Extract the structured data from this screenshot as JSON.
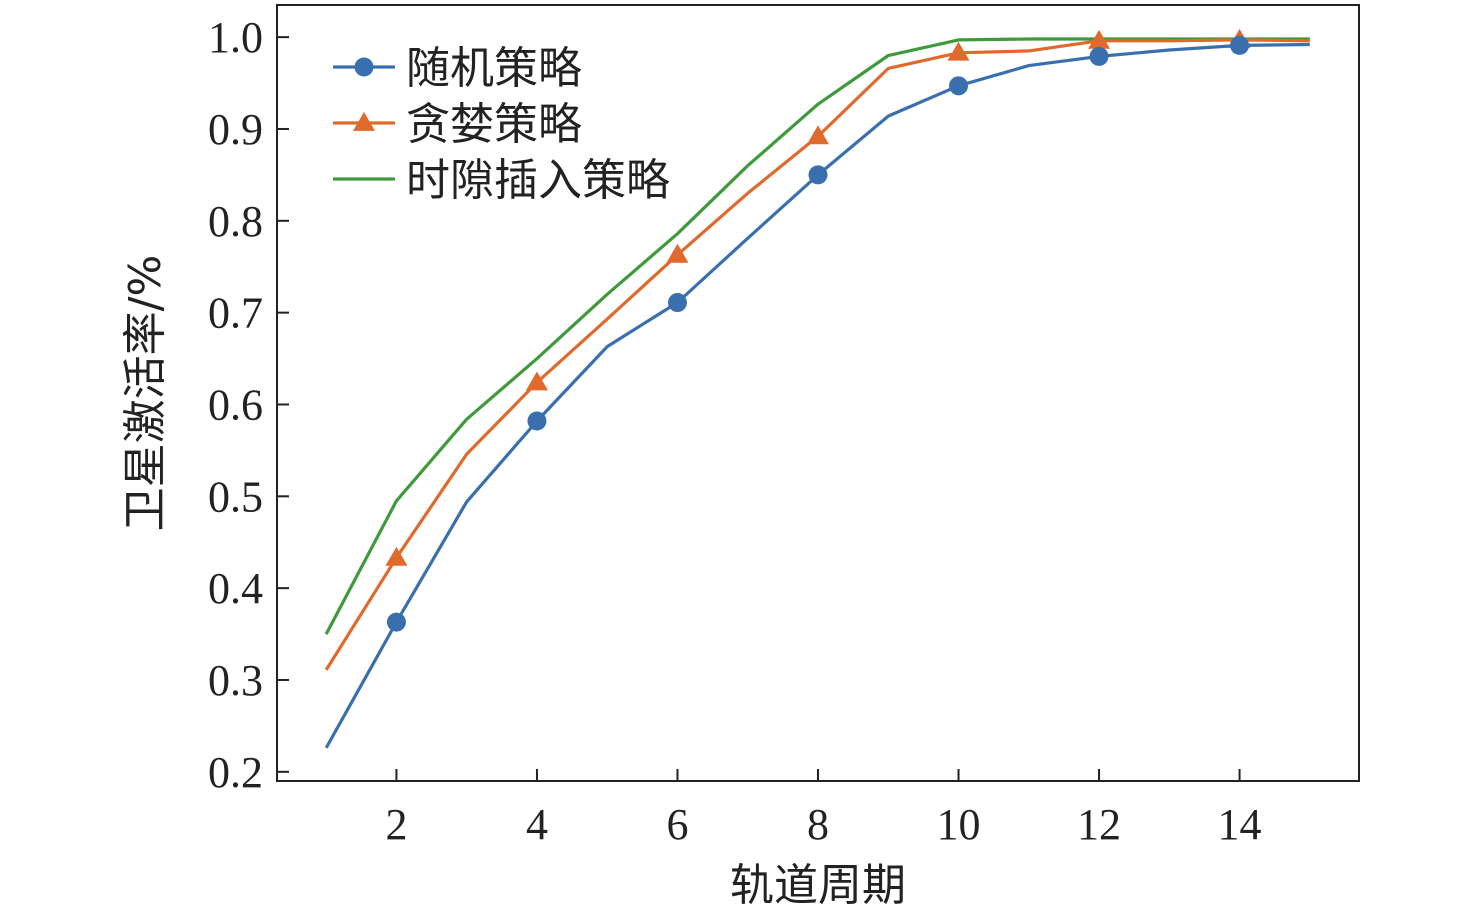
{
  "chart_data": {
    "type": "line",
    "title": "",
    "xlabel": "轨道周期",
    "ylabel": "卫星激活率/%",
    "xlim": [
      0.3,
      15.7
    ],
    "ylim": [
      0.19,
      1.035
    ],
    "xticks": [
      2,
      4,
      6,
      8,
      10,
      12,
      14
    ],
    "xtick_labels": [
      "2",
      "4",
      "6",
      "8",
      "10",
      "12",
      "14"
    ],
    "yticks": [
      0.2,
      0.3,
      0.4,
      0.5,
      0.6,
      0.7,
      0.8,
      0.9,
      1.0
    ],
    "ytick_labels": [
      "0.2",
      "0.3",
      "0.4",
      "0.5",
      "0.6",
      "0.7",
      "0.8",
      "0.9",
      "1.0"
    ],
    "grid": false,
    "legend_position": "top-left",
    "x": [
      1,
      2,
      3,
      4,
      5,
      6,
      7,
      8,
      9,
      10,
      11,
      12,
      13,
      14,
      15
    ],
    "series": [
      {
        "name": "随机策略",
        "color": "#3a6faf",
        "marker": "circle",
        "marker_x": [
          2,
          4,
          6,
          8,
          10,
          12,
          14
        ],
        "values": [
          0.226,
          0.363,
          0.494,
          0.582,
          0.663,
          0.711,
          0.781,
          0.85,
          0.914,
          0.947,
          0.969,
          0.979,
          0.986,
          0.991,
          0.992
        ]
      },
      {
        "name": "贪婪策略",
        "color": "#e0692c",
        "marker": "triangle",
        "marker_x": [
          2,
          4,
          6,
          8,
          10,
          12,
          14
        ],
        "values": [
          0.311,
          0.433,
          0.546,
          0.624,
          0.693,
          0.763,
          0.83,
          0.892,
          0.966,
          0.983,
          0.985,
          0.996,
          0.996,
          0.997,
          0.996
        ]
      },
      {
        "name": "时隙插入策略",
        "color": "#3f9a3c",
        "marker": "none",
        "marker_x": [],
        "values": [
          0.35,
          0.495,
          0.584,
          0.65,
          0.72,
          0.786,
          0.86,
          0.927,
          0.98,
          0.997,
          0.998,
          0.998,
          0.998,
          0.998,
          0.998
        ]
      }
    ]
  }
}
